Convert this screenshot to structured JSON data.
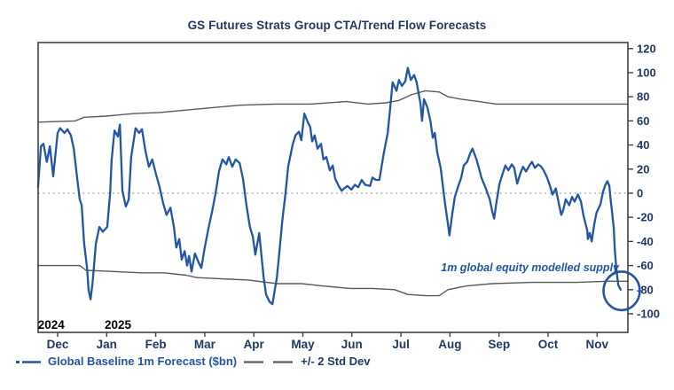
{
  "title": "GS Futures Strats Group CTA/Trend Flow Forecasts",
  "colors": {
    "forecast_blue": "#2255a4",
    "band_gray": "#595959",
    "dotted_gridline": "#b7b7b7",
    "frame": "#404040",
    "axis_text": "#1f3864",
    "year_text": "#000000",
    "title_text": "#1f3864"
  },
  "legend": [
    {
      "label": "Global Baseline 1m Forecast ($bn)",
      "marker": "blue-line-marker",
      "color": "#2255a4"
    },
    {
      "label": "+/- 2 Std Dev",
      "marker": "gray-double-dash-marker",
      "color": "#595959"
    }
  ],
  "chart_data": {
    "type": "line",
    "title": "GS Futures Strats Group CTA/Trend Flow Forecasts",
    "x_unit": "months, Dec 2024 - Nov 2025 (0 = Dec tick)",
    "x_tick_labels": [
      "Dec",
      "Jan",
      "Feb",
      "Mar",
      "Apr",
      "May",
      "Jun",
      "Jul",
      "Aug",
      "Sep",
      "Oct",
      "Nov"
    ],
    "year_labels": [
      {
        "label": "2024",
        "month": -0.13
      },
      {
        "label": "2025",
        "month": 1.23
      }
    ],
    "y_axis": {
      "min": -100,
      "max": 120,
      "step": 20,
      "side": "right"
    },
    "zero_line": true,
    "grid": false,
    "legend_position": "bottom-left",
    "annotation": {
      "text": "1m global equity modelled supply",
      "anchor_month": 11.42,
      "anchor_value": -57
    },
    "highlight_ellipse": {
      "month": 11.5,
      "value": -81,
      "rx_months": 0.37,
      "ry_values": 16,
      "color": "#2255a4"
    },
    "series": [
      {
        "name": "+2 Std Dev",
        "data_name": "upper-std-dev-line",
        "color": "#595959",
        "width": 1.4,
        "points": [
          [
            -0.4,
            59
          ],
          [
            0.36,
            60
          ],
          [
            0.54,
            63
          ],
          [
            0.99,
            64
          ],
          [
            1.54,
            66
          ],
          [
            2.08,
            67
          ],
          [
            2.62,
            69
          ],
          [
            3.16,
            71
          ],
          [
            3.71,
            73
          ],
          [
            4.43,
            74
          ],
          [
            5.15,
            74
          ],
          [
            5.88,
            76
          ],
          [
            6.33,
            74
          ],
          [
            6.69,
            75
          ],
          [
            6.96,
            77
          ],
          [
            7.23,
            82
          ],
          [
            7.5,
            85
          ],
          [
            7.78,
            84
          ],
          [
            7.96,
            80
          ],
          [
            8.23,
            78
          ],
          [
            8.59,
            76
          ],
          [
            8.95,
            74
          ],
          [
            9.67,
            74
          ],
          [
            10.58,
            74
          ],
          [
            11.3,
            74
          ],
          [
            11.63,
            74
          ]
        ]
      },
      {
        "name": "-2 Std Dev",
        "data_name": "lower-std-dev-line",
        "color": "#595959",
        "width": 1.4,
        "points": [
          [
            -0.4,
            -60
          ],
          [
            0.45,
            -60
          ],
          [
            0.58,
            -64
          ],
          [
            1.18,
            -65
          ],
          [
            1.72,
            -66
          ],
          [
            2.17,
            -66
          ],
          [
            2.62,
            -68
          ],
          [
            2.84,
            -70
          ],
          [
            3.35,
            -71
          ],
          [
            3.89,
            -72
          ],
          [
            4.48,
            -75
          ],
          [
            4.97,
            -75
          ],
          [
            5.42,
            -77
          ],
          [
            5.97,
            -79
          ],
          [
            6.42,
            -79
          ],
          [
            6.87,
            -80
          ],
          [
            7.14,
            -84
          ],
          [
            7.5,
            -85
          ],
          [
            7.78,
            -85
          ],
          [
            7.96,
            -80
          ],
          [
            8.32,
            -77
          ],
          [
            8.86,
            -75
          ],
          [
            9.67,
            -74
          ],
          [
            10.58,
            -74
          ],
          [
            11.21,
            -73
          ],
          [
            11.63,
            -73
          ]
        ]
      },
      {
        "name": "Global Baseline 1m Forecast ($bn)",
        "data_name": "forecast-line",
        "color": "#2255a4",
        "width": 2.3,
        "points": [
          [
            -0.4,
            5
          ],
          [
            -0.34,
            39
          ],
          [
            -0.29,
            41
          ],
          [
            -0.22,
            26
          ],
          [
            -0.16,
            39
          ],
          [
            -0.09,
            14
          ],
          [
            0.0,
            50
          ],
          [
            0.05,
            54
          ],
          [
            0.14,
            50
          ],
          [
            0.2,
            53
          ],
          [
            0.27,
            48
          ],
          [
            0.33,
            37
          ],
          [
            0.4,
            12
          ],
          [
            0.45,
            -5
          ],
          [
            0.49,
            -10
          ],
          [
            0.54,
            -42
          ],
          [
            0.6,
            -62
          ],
          [
            0.63,
            -80
          ],
          [
            0.67,
            -88
          ],
          [
            0.71,
            -75
          ],
          [
            0.78,
            -42
          ],
          [
            0.85,
            -28
          ],
          [
            0.92,
            -32
          ],
          [
            1.01,
            -28
          ],
          [
            1.07,
            0
          ],
          [
            1.1,
            27
          ],
          [
            1.16,
            52
          ],
          [
            1.23,
            47
          ],
          [
            1.27,
            57
          ],
          [
            1.32,
            2
          ],
          [
            1.39,
            -11
          ],
          [
            1.45,
            -5
          ],
          [
            1.5,
            30
          ],
          [
            1.59,
            54
          ],
          [
            1.66,
            50
          ],
          [
            1.72,
            53
          ],
          [
            1.79,
            35
          ],
          [
            1.86,
            22
          ],
          [
            1.93,
            28
          ],
          [
            2.01,
            15
          ],
          [
            2.08,
            5
          ],
          [
            2.15,
            -8
          ],
          [
            2.22,
            -18
          ],
          [
            2.3,
            -12
          ],
          [
            2.37,
            -28
          ],
          [
            2.42,
            -45
          ],
          [
            2.48,
            -38
          ],
          [
            2.53,
            -55
          ],
          [
            2.59,
            -48
          ],
          [
            2.64,
            -60
          ],
          [
            2.68,
            -52
          ],
          [
            2.73,
            -65
          ],
          [
            2.8,
            -50
          ],
          [
            2.88,
            -58
          ],
          [
            2.93,
            -62
          ],
          [
            3.0,
            -45
          ],
          [
            3.07,
            -30
          ],
          [
            3.15,
            -15
          ],
          [
            3.22,
            0
          ],
          [
            3.29,
            18
          ],
          [
            3.36,
            28
          ],
          [
            3.44,
            24
          ],
          [
            3.49,
            30
          ],
          [
            3.56,
            22
          ],
          [
            3.63,
            28
          ],
          [
            3.71,
            25
          ],
          [
            3.78,
            12
          ],
          [
            3.85,
            -10
          ],
          [
            3.92,
            -28
          ],
          [
            3.98,
            -36
          ],
          [
            4.03,
            -51
          ],
          [
            4.11,
            -33
          ],
          [
            4.2,
            -70
          ],
          [
            4.25,
            -84
          ],
          [
            4.32,
            -90
          ],
          [
            4.38,
            -92
          ],
          [
            4.47,
            -70
          ],
          [
            4.52,
            -49
          ],
          [
            4.58,
            -23
          ],
          [
            4.65,
            1
          ],
          [
            4.7,
            22
          ],
          [
            4.79,
            40
          ],
          [
            4.85,
            48
          ],
          [
            4.92,
            51
          ],
          [
            4.97,
            44
          ],
          [
            5.03,
            66
          ],
          [
            5.1,
            59
          ],
          [
            5.15,
            55
          ],
          [
            5.19,
            43
          ],
          [
            5.24,
            48
          ],
          [
            5.3,
            37
          ],
          [
            5.37,
            41
          ],
          [
            5.42,
            28
          ],
          [
            5.48,
            30
          ],
          [
            5.55,
            19
          ],
          [
            5.61,
            23
          ],
          [
            5.66,
            12
          ],
          [
            5.73,
            6
          ],
          [
            5.79,
            2
          ],
          [
            5.84,
            4
          ],
          [
            5.91,
            6
          ],
          [
            5.99,
            3
          ],
          [
            6.06,
            7
          ],
          [
            6.13,
            5
          ],
          [
            6.2,
            11
          ],
          [
            6.27,
            7
          ],
          [
            6.37,
            6
          ],
          [
            6.42,
            13
          ],
          [
            6.49,
            11
          ],
          [
            6.56,
            11
          ],
          [
            6.65,
            33
          ],
          [
            6.73,
            50
          ],
          [
            6.78,
            70
          ],
          [
            6.83,
            92
          ],
          [
            6.91,
            85
          ],
          [
            6.96,
            94
          ],
          [
            7.02,
            89
          ],
          [
            7.09,
            93
          ],
          [
            7.14,
            104
          ],
          [
            7.2,
            94
          ],
          [
            7.27,
            98
          ],
          [
            7.32,
            92
          ],
          [
            7.36,
            83
          ],
          [
            7.4,
            74
          ],
          [
            7.43,
            60
          ],
          [
            7.47,
            78
          ],
          [
            7.54,
            71
          ],
          [
            7.6,
            60
          ],
          [
            7.65,
            46
          ],
          [
            7.69,
            50
          ],
          [
            7.74,
            34
          ],
          [
            7.81,
            21
          ],
          [
            7.87,
            1
          ],
          [
            7.9,
            -9
          ],
          [
            7.96,
            -26
          ],
          [
            7.99,
            -35
          ],
          [
            8.05,
            -16
          ],
          [
            8.1,
            -3
          ],
          [
            8.17,
            6
          ],
          [
            8.23,
            13
          ],
          [
            8.28,
            23
          ],
          [
            8.35,
            26
          ],
          [
            8.41,
            33
          ],
          [
            8.46,
            37
          ],
          [
            8.54,
            28
          ],
          [
            8.59,
            21
          ],
          [
            8.64,
            13
          ],
          [
            8.73,
            4
          ],
          [
            8.81,
            -5
          ],
          [
            8.86,
            -15
          ],
          [
            8.9,
            -21
          ],
          [
            8.95,
            -7
          ],
          [
            9.01,
            8
          ],
          [
            9.08,
            17
          ],
          [
            9.13,
            23
          ],
          [
            9.19,
            19
          ],
          [
            9.26,
            24
          ],
          [
            9.31,
            21
          ],
          [
            9.37,
            8
          ],
          [
            9.44,
            17
          ],
          [
            9.49,
            22
          ],
          [
            9.55,
            18
          ],
          [
            9.62,
            23
          ],
          [
            9.67,
            26
          ],
          [
            9.73,
            21
          ],
          [
            9.8,
            24
          ],
          [
            9.86,
            22
          ],
          [
            9.91,
            19
          ],
          [
            9.98,
            13
          ],
          [
            10.04,
            6
          ],
          [
            10.09,
            -1
          ],
          [
            10.16,
            4
          ],
          [
            10.22,
            -9
          ],
          [
            10.27,
            -18
          ],
          [
            10.31,
            -14
          ],
          [
            10.36,
            -5
          ],
          [
            10.43,
            -10
          ],
          [
            10.49,
            -3
          ],
          [
            10.54,
            -7
          ],
          [
            10.61,
            -1
          ],
          [
            10.67,
            -7
          ],
          [
            10.72,
            -18
          ],
          [
            10.8,
            -31
          ],
          [
            10.81,
            -38
          ],
          [
            10.85,
            -33
          ],
          [
            10.89,
            -40
          ],
          [
            10.94,
            -26
          ],
          [
            10.99,
            -16
          ],
          [
            11.07,
            -9
          ],
          [
            11.12,
            1
          ],
          [
            11.17,
            7
          ],
          [
            11.21,
            10
          ],
          [
            11.25,
            6
          ],
          [
            11.27,
            -3
          ],
          [
            11.3,
            -14
          ],
          [
            11.34,
            -29
          ],
          [
            11.36,
            -46
          ],
          [
            11.39,
            -62
          ],
          [
            11.43,
            -76
          ],
          [
            11.48,
            -80
          ]
        ]
      }
    ]
  }
}
